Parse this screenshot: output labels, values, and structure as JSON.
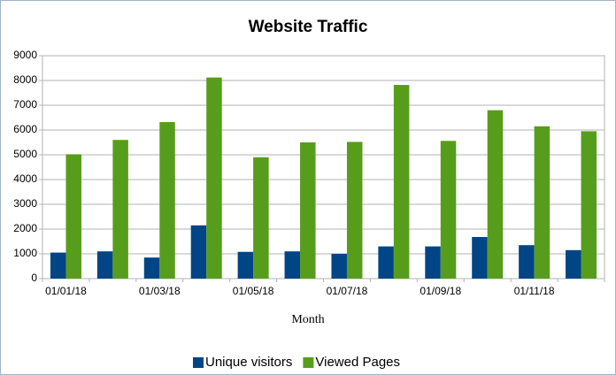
{
  "chart_data": {
    "type": "bar",
    "title": "Website Traffic",
    "x_label": "Month",
    "categories": [
      "01/01/18",
      null,
      "01/03/18",
      null,
      "01/05/18",
      null,
      "01/07/18",
      null,
      "01/09/18",
      null,
      "01/11/18",
      null
    ],
    "series": [
      {
        "name": "Unique visitors",
        "color": "#004586",
        "values": [
          1050,
          1100,
          850,
          2150,
          1080,
          1100,
          1000,
          1300,
          1300,
          1680,
          1350,
          1150
        ]
      },
      {
        "name": "Viewed Pages",
        "color": "#579d1c",
        "values": [
          5020,
          5600,
          6320,
          8120,
          4900,
          5500,
          5520,
          7820,
          5560,
          6800,
          6150,
          5950
        ]
      }
    ],
    "ylim": [
      0,
      9000
    ],
    "yticks": [
      0,
      1000,
      2000,
      3000,
      4000,
      5000,
      6000,
      7000,
      8000,
      9000
    ],
    "grid": true,
    "legend": "bottom"
  }
}
